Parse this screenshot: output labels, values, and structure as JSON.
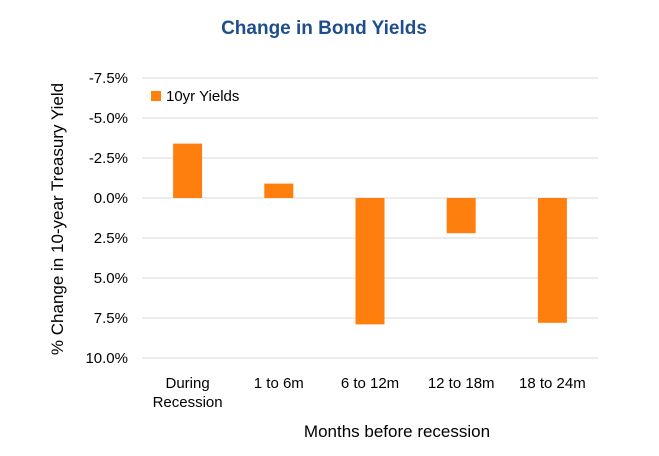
{
  "chart_data": {
    "type": "bar",
    "title": "Change in Bond Yields",
    "xlabel": "Months before recession",
    "ylabel": "% Change in 10-year Treasury Yield",
    "categories": [
      [
        "During",
        "Recession"
      ],
      [
        "1 to 6m"
      ],
      [
        "6 to 12m"
      ],
      [
        "12 to 18m"
      ],
      [
        "18 to 24m"
      ]
    ],
    "series": [
      {
        "name": "10yr Yields",
        "color": "#FF7F0E",
        "values": [
          -3.4,
          -0.9,
          7.9,
          2.2,
          7.8
        ]
      }
    ],
    "y_axis": {
      "reversed": true,
      "ylim": [
        -7.5,
        10.0
      ],
      "ticks": [
        -7.5,
        -5.0,
        -2.5,
        0.0,
        2.5,
        5.0,
        7.5,
        10.0
      ],
      "tick_labels": [
        "-7.5%",
        "-5.0%",
        "-2.5%",
        "0.0%",
        "2.5%",
        "5.0%",
        "7.5%",
        "10.0%"
      ]
    },
    "grid": true,
    "legend": "top-left",
    "title_color": "#1F4E8C"
  }
}
